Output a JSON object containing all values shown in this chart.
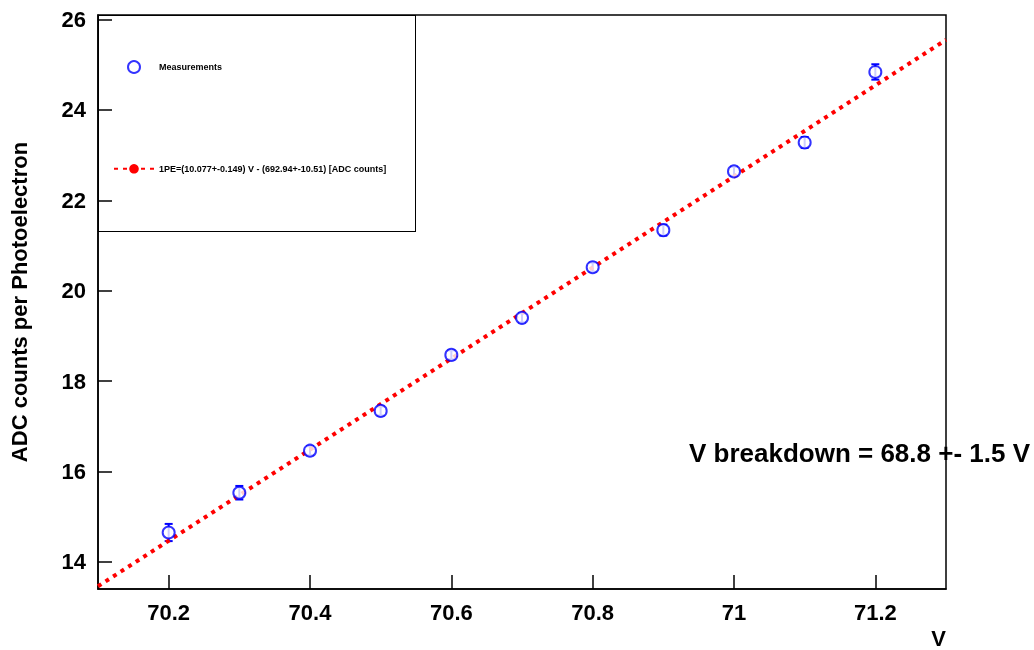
{
  "chart_data": {
    "type": "scatter",
    "xlabel": "V",
    "ylabel": "ADC counts per Photoelectron",
    "x": [
      70.2,
      70.3,
      70.4,
      70.5,
      70.6,
      70.7,
      70.8,
      70.9,
      71.0,
      71.1,
      71.2
    ],
    "xlim": [
      70.1,
      71.3
    ],
    "ylim": [
      13.4,
      26.1
    ],
    "xticks": [
      70.2,
      70.4,
      70.6,
      70.8,
      {
        "value": 71,
        "label": "71"
      },
      71.2
    ],
    "yticks": [
      14,
      16,
      18,
      20,
      22,
      24,
      26
    ],
    "series": [
      {
        "name": "Measurements",
        "color": "#0000ff",
        "marker": "circle",
        "values": [
          14.65,
          15.53,
          16.46,
          17.34,
          18.58,
          19.4,
          20.52,
          21.34,
          22.64,
          23.28,
          24.84
        ],
        "errors": [
          0.19,
          0.15,
          0.1,
          0.1,
          0.1,
          0.1,
          0.1,
          0.12,
          0.1,
          0.12,
          0.17
        ]
      },
      {
        "name": "1PE=(10.077+-0.149) V - (692.94+-10.51) [ADC counts]",
        "type": "line",
        "color": "#ff0000",
        "marker": "none",
        "line_style": "dotted",
        "x": [
          70.1,
          71.3
        ],
        "values": [
          13.46,
          25.55
        ]
      }
    ],
    "annotations": [
      "V breakdown = 68.8 +- 1.5 V"
    ],
    "legend": "top left",
    "grid": false
  }
}
